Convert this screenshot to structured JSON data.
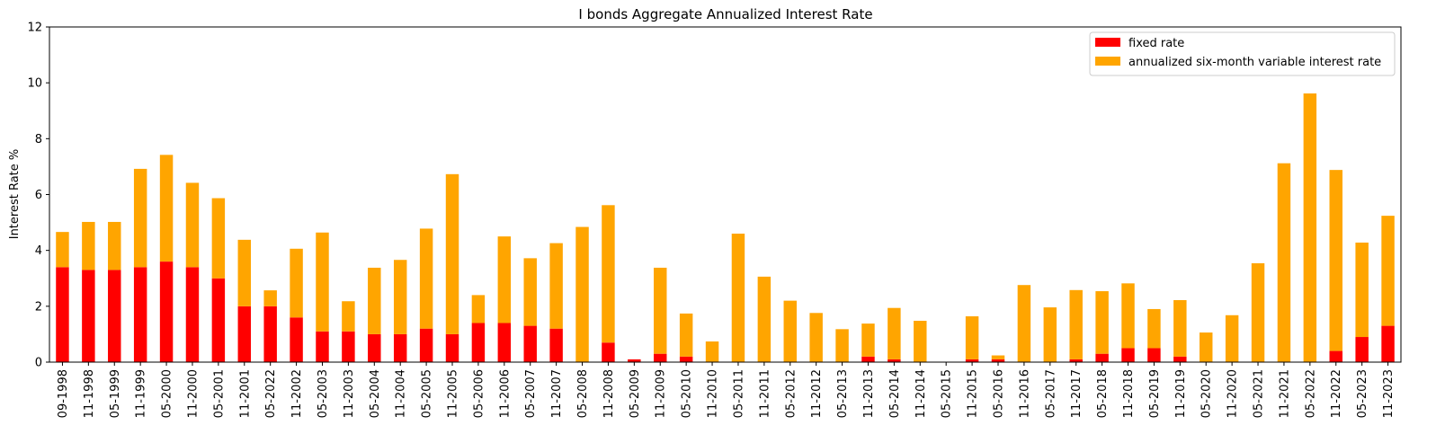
{
  "chart_data": {
    "type": "bar",
    "stacked": true,
    "title": "I bonds Aggregate Annualized Interest Rate",
    "xlabel": "",
    "ylabel": "Interest Rate %",
    "ylim": [
      0,
      12
    ],
    "yticks": [
      0,
      2,
      4,
      6,
      8,
      10,
      12
    ],
    "grid": false,
    "legend_position": "top-right",
    "categories": [
      "09-1998",
      "11-1998",
      "05-1999",
      "11-1999",
      "05-2000",
      "11-2000",
      "05-2001",
      "11-2001",
      "05-2022",
      "11-2002",
      "05-2003",
      "11-2003",
      "05-2004",
      "11-2004",
      "05-2005",
      "11-2005",
      "05-2006",
      "11-2006",
      "05-2007",
      "11-2007",
      "05-2008",
      "11-2008",
      "05-2009",
      "11-2009",
      "05-2010",
      "11-2010",
      "05-2011",
      "11-2011",
      "05-2012",
      "11-2012",
      "05-2013",
      "11-2013",
      "05-2014",
      "11-2014",
      "05-2015",
      "11-2015",
      "05-2016",
      "11-2016",
      "05-2017",
      "11-2017",
      "05-2018",
      "11-2018",
      "05-2019",
      "11-2019",
      "05-2020",
      "11-2020",
      "05-2021",
      "11-2021",
      "05-2022",
      "11-2022",
      "05-2023",
      "11-2023"
    ],
    "series": [
      {
        "name": "fixed rate",
        "color": "#ff0000",
        "values": [
          3.4,
          3.3,
          3.3,
          3.4,
          3.6,
          3.4,
          3.0,
          2.0,
          2.0,
          1.6,
          1.1,
          1.1,
          1.0,
          1.0,
          1.2,
          1.0,
          1.4,
          1.4,
          1.3,
          1.2,
          0.0,
          0.7,
          0.1,
          0.3,
          0.2,
          0.0,
          0.0,
          0.0,
          0.0,
          0.0,
          0.0,
          0.2,
          0.1,
          0.0,
          0.0,
          0.1,
          0.1,
          0.0,
          0.0,
          0.1,
          0.3,
          0.5,
          0.5,
          0.2,
          0.0,
          0.0,
          0.0,
          0.0,
          0.0,
          0.4,
          0.9,
          1.3
        ]
      },
      {
        "name": "annualized six-month variable interest rate",
        "color": "#ffa500",
        "values": [
          1.26,
          1.72,
          1.72,
          3.52,
          3.82,
          3.02,
          2.87,
          2.38,
          0.57,
          2.46,
          3.54,
          1.08,
          2.38,
          2.66,
          3.58,
          5.73,
          1.0,
          3.1,
          2.42,
          3.06,
          4.84,
          4.92,
          0.0,
          3.08,
          1.54,
          0.74,
          4.6,
          3.06,
          2.2,
          1.76,
          1.18,
          1.18,
          1.84,
          1.48,
          0.0,
          1.54,
          0.14,
          2.76,
          1.96,
          2.48,
          2.24,
          2.32,
          1.4,
          2.02,
          1.06,
          1.68,
          3.54,
          7.12,
          9.62,
          6.48,
          3.38,
          3.94
        ]
      }
    ]
  }
}
